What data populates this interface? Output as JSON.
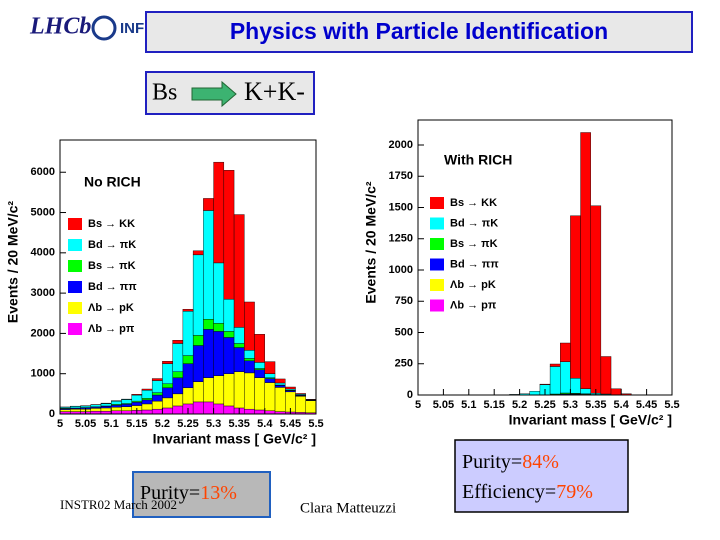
{
  "header": {
    "logos": [
      "LHCb",
      "INFN"
    ],
    "title": "Physics with Particle Identification",
    "decay": {
      "from": "Bs",
      "to": "K+K-"
    }
  },
  "chart_data": [
    {
      "type": "histogram",
      "title": "No RICH",
      "x_label": "Invariant mass  [ GeV/c² ]",
      "y_label": "Events  /  20 MeV/c²",
      "bins": [
        5.0,
        5.02,
        5.04,
        5.06,
        5.08,
        5.1,
        5.12,
        5.14,
        5.16,
        5.18,
        5.2,
        5.22,
        5.24,
        5.26,
        5.28,
        5.3,
        5.32,
        5.34,
        5.36,
        5.38,
        5.4,
        5.42,
        5.44,
        5.46,
        5.48,
        5.5
      ],
      "xlim": [
        5,
        5.5
      ],
      "xticks": [
        5,
        5.05,
        5.1,
        5.15,
        5.2,
        5.25,
        5.3,
        5.35,
        5.4,
        5.45,
        5.5
      ],
      "ylim": [
        0,
        6800
      ],
      "yticks": [
        0,
        1000,
        2000,
        3000,
        4000,
        5000,
        6000
      ],
      "series": [
        {
          "name": "Bs → KK",
          "color": "#ff0000",
          "values": [
            5,
            5,
            5,
            5,
            10,
            10,
            10,
            20,
            30,
            50,
            60,
            80,
            50,
            100,
            300,
            2500,
            3200,
            2800,
            1200,
            700,
            300,
            100,
            50,
            20,
            10
          ]
        },
        {
          "name": "Bd → πK",
          "color": "#00ffff",
          "values": [
            30,
            40,
            40,
            50,
            60,
            80,
            100,
            150,
            200,
            300,
            500,
            700,
            1100,
            2000,
            2700,
            1500,
            800,
            400,
            200,
            150,
            100,
            50,
            30,
            20,
            10
          ]
        },
        {
          "name": "Bs → πK",
          "color": "#00ff00",
          "values": [
            10,
            10,
            10,
            10,
            10,
            20,
            20,
            30,
            40,
            60,
            100,
            150,
            200,
            250,
            250,
            200,
            150,
            100,
            60,
            30,
            20,
            10,
            10,
            10,
            5
          ]
        },
        {
          "name": "Bd → ππ",
          "color": "#0000ff",
          "values": [
            20,
            20,
            30,
            30,
            40,
            50,
            60,
            80,
            100,
            150,
            250,
            400,
            600,
            900,
            1200,
            1100,
            900,
            600,
            300,
            200,
            100,
            50,
            30,
            20,
            10
          ]
        },
        {
          "name": "Λb → pK",
          "color": "#ffff00",
          "values": [
            50,
            60,
            60,
            70,
            80,
            90,
            100,
            120,
            150,
            200,
            250,
            300,
            400,
            500,
            600,
            700,
            800,
            900,
            900,
            800,
            700,
            600,
            500,
            400,
            300
          ]
        },
        {
          "name": "Λb → pπ",
          "color": "#ff00ff",
          "values": [
            60,
            60,
            60,
            70,
            70,
            80,
            80,
            90,
            100,
            120,
            150,
            200,
            250,
            300,
            300,
            250,
            200,
            150,
            120,
            100,
            80,
            60,
            50,
            40,
            30
          ]
        }
      ]
    },
    {
      "type": "histogram",
      "title": "With RICH",
      "x_label": "Invariant mass  [ GeV/c² ]",
      "y_label": "Events  /  20 MeV/c²",
      "bins": [
        5.0,
        5.02,
        5.04,
        5.06,
        5.08,
        5.1,
        5.12,
        5.14,
        5.16,
        5.18,
        5.2,
        5.22,
        5.24,
        5.26,
        5.28,
        5.3,
        5.32,
        5.34,
        5.36,
        5.38,
        5.4,
        5.42,
        5.44,
        5.46,
        5.48,
        5.5
      ],
      "xlim": [
        5,
        5.5
      ],
      "xticks": [
        5,
        5.05,
        5.1,
        5.15,
        5.2,
        5.25,
        5.3,
        5.35,
        5.4,
        5.45,
        5.5
      ],
      "ylim": [
        0,
        2200
      ],
      "yticks": [
        0,
        250,
        500,
        750,
        1000,
        1250,
        1500,
        1750,
        2000
      ],
      "series": [
        {
          "name": "Bs → KK",
          "color": "#ff0000",
          "values": [
            0,
            0,
            0,
            0,
            0,
            0,
            0,
            0,
            0,
            0,
            0,
            0,
            5,
            20,
            150,
            1300,
            2050,
            1500,
            300,
            50,
            10,
            0,
            0,
            0,
            0
          ]
        },
        {
          "name": "Bd → πK",
          "color": "#00ffff",
          "values": [
            0,
            0,
            0,
            0,
            0,
            0,
            0,
            0,
            0,
            5,
            10,
            30,
            80,
            220,
            250,
            120,
            40,
            10,
            5,
            0,
            0,
            0,
            0,
            0,
            0
          ]
        },
        {
          "name": "Bs → πK",
          "color": "#00ff00",
          "values": [
            0,
            0,
            0,
            0,
            0,
            0,
            0,
            0,
            0,
            0,
            0,
            0,
            2,
            5,
            8,
            5,
            3,
            0,
            0,
            0,
            0,
            0,
            0,
            0,
            0
          ]
        },
        {
          "name": "Bd → ππ",
          "color": "#0000ff",
          "values": [
            0,
            0,
            0,
            0,
            0,
            0,
            0,
            0,
            0,
            0,
            0,
            0,
            0,
            3,
            5,
            3,
            0,
            0,
            0,
            0,
            0,
            0,
            0,
            0,
            0
          ]
        },
        {
          "name": "Λb → pK",
          "color": "#ffff00",
          "values": [
            0,
            0,
            0,
            0,
            0,
            0,
            0,
            0,
            0,
            0,
            0,
            0,
            0,
            0,
            2,
            4,
            5,
            4,
            3,
            0,
            0,
            0,
            0,
            0,
            0
          ]
        },
        {
          "name": "Λb → pπ",
          "color": "#ff00ff",
          "values": [
            0,
            0,
            0,
            0,
            0,
            0,
            0,
            0,
            0,
            0,
            0,
            0,
            0,
            0,
            1,
            2,
            2,
            0,
            0,
            0,
            0,
            0,
            0,
            0,
            0
          ]
        }
      ]
    }
  ],
  "footer": {
    "purity_left": {
      "label": "Purity=",
      "value": "13%"
    },
    "conference": "INSTR02 March 2002",
    "author": "Clara Matteuzzi",
    "purity_right": {
      "label": "Purity=",
      "value": "84%"
    },
    "efficiency": {
      "label": "Efficiency=",
      "value": "79%"
    }
  }
}
